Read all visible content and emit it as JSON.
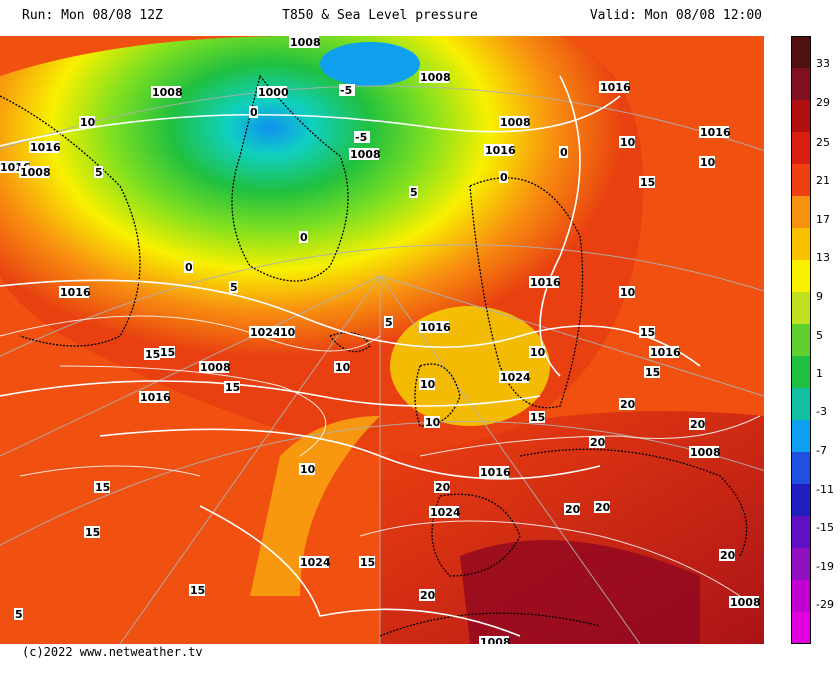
{
  "header": {
    "run": "Run: Mon 08/08 12Z",
    "title": "T850 & Sea Level pressure",
    "valid": "Valid: Mon 08/08 12:00"
  },
  "footer": {
    "credit": "(c)2022 www.netweather.tv"
  },
  "colors": {
    "magenta": "#e000e0",
    "purple": "#8000c0",
    "blue": "#2020d0",
    "lightblue": "#1090f0",
    "cyan": "#10d0e0",
    "green": "#20c040",
    "lightgreen": "#80e020",
    "yellow": "#f8f000",
    "orange": "#f89010",
    "red": "#e82010",
    "darkred": "#b01010",
    "maroon": "#501010"
  },
  "scale": {
    "labels": [
      "33",
      "29",
      "25",
      "21",
      "17",
      "13",
      "9",
      "5",
      "1",
      "-3",
      "-7",
      "-11",
      "-15",
      "-19",
      "-29"
    ]
  },
  "map_labels": {
    "isobars": [
      "1008",
      "1008",
      "1000",
      "1008",
      "1008",
      "1016",
      "1016",
      "1016",
      "1008",
      "1016",
      "1016",
      "1016",
      "1024",
      "1024",
      "1024",
      "1016",
      "1008",
      "1016",
      "1016",
      "1016",
      "1008",
      "1008",
      "1024",
      "1008",
      "1008",
      "1016"
    ],
    "isotherms": [
      "10",
      "5",
      "0",
      "-5",
      "-5",
      "0",
      "0",
      "0",
      "5",
      "0",
      "5",
      "10",
      "15",
      "10",
      "10",
      "15",
      "5",
      "10",
      "15",
      "10",
      "15",
      "10",
      "15",
      "20",
      "20",
      "20",
      "20",
      "20",
      "20",
      "15",
      "15",
      "15",
      "20",
      "20",
      "15",
      "5",
      "10",
      "10",
      "10",
      "15",
      "15"
    ]
  }
}
